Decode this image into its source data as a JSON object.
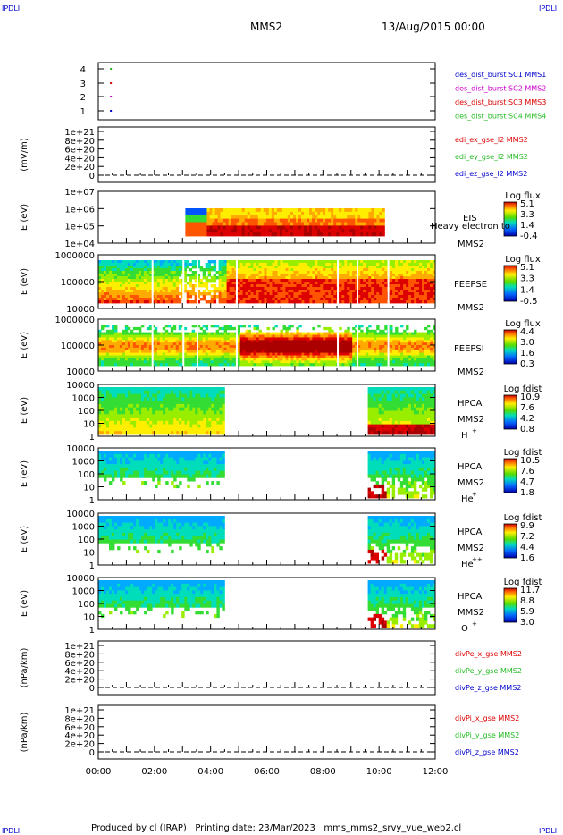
{
  "corner_label": "IPDLI",
  "header": {
    "spacecraft": "MMS2",
    "date": "13/Aug/2015 00:00"
  },
  "footer": "Produced by cl (IRAP)   Printing date: 23/Mar/2023   mms_mms2_srvy_vue_web2.cl",
  "colors": {
    "blue": "#0000cc",
    "magenta": "#cc00cc",
    "red": "#dd0000",
    "green": "#22bb22"
  },
  "chart_data": {
    "type": "heatmap",
    "x_axis": {
      "ticks": [
        "00:00",
        "02:00",
        "04:00",
        "06:00",
        "08:00",
        "10:00",
        "12:00"
      ],
      "range_hours": [
        0,
        12
      ]
    },
    "panels": [
      {
        "id": "burst",
        "type": "scatter",
        "yticks": [
          "4",
          "3",
          "2",
          "1"
        ],
        "legend": [
          {
            "text": "des_dist_burst SC1 MMS1",
            "color": "blue"
          },
          {
            "text": "des_dist_burst SC2 MMS2",
            "color": "magenta"
          },
          {
            "text": "des_dist_burst SC3 MMS3",
            "color": "red"
          },
          {
            "text": "des_dist_burst SC4 MMS4",
            "color": "green"
          }
        ],
        "points": [
          {
            "x": 0.45,
            "y": 4,
            "color": "green"
          },
          {
            "x": 0.45,
            "y": 3,
            "color": "red"
          },
          {
            "x": 0.45,
            "y": 2,
            "color": "magenta"
          },
          {
            "x": 0.45,
            "y": 1,
            "color": "blue"
          }
        ]
      },
      {
        "id": "edi",
        "type": "line",
        "ylabel": "(mV/m)",
        "yticks": [
          "1e+21",
          "8e+20",
          "6e+20",
          "4e+20",
          "2e+20",
          "0"
        ],
        "legend": [
          {
            "text": "edi_ex_gse_l2 MMS2",
            "color": "red"
          },
          {
            "text": "edi_ey_gse_l2 MMS2",
            "color": "green"
          },
          {
            "text": "edi_ez_gse_l2 MMS2",
            "color": "blue"
          }
        ]
      },
      {
        "id": "eis",
        "type": "heatmap",
        "ylabel": "E (eV)",
        "yticks": [
          "1e+07",
          "1e+06",
          "1e+05",
          "1e+04"
        ],
        "labels": [
          "EIS",
          "Heavy electron to",
          "MMS2"
        ],
        "cbar_title": "Log flux",
        "cbar_ticks": [
          "5.1",
          "3.3",
          "1.4",
          "-0.4"
        ],
        "data_x_range": [
          3.1,
          10.2
        ]
      },
      {
        "id": "feepse",
        "type": "heatmap",
        "ylabel": "E (eV)",
        "yticks": [
          "1000000",
          "100000",
          "10000"
        ],
        "labels": [
          "FEEPSE",
          "MMS2"
        ],
        "cbar_title": "Log flux",
        "cbar_ticks": [
          "5.1",
          "3.3",
          "1.4",
          "-0.5"
        ],
        "data_x_range": [
          0,
          12
        ]
      },
      {
        "id": "feepsi",
        "type": "heatmap",
        "ylabel": "E (eV)",
        "yticks": [
          "1000000",
          "100000",
          "10000"
        ],
        "labels": [
          "FEEPSI",
          "MMS2"
        ],
        "cbar_title": "Log flux",
        "cbar_ticks": [
          "4.4",
          "3.0",
          "1.6",
          "0.3"
        ],
        "data_x_range": [
          0,
          12
        ]
      },
      {
        "id": "hpca_h",
        "type": "heatmap",
        "ylabel": "E (eV)",
        "yticks": [
          "10000",
          "1000",
          "100",
          "10",
          "1"
        ],
        "labels": [
          "HPCA",
          "MMS2"
        ],
        "species": "H",
        "species_sup": "+",
        "cbar_title": "Log fdist",
        "cbar_ticks": [
          "10.9",
          "7.6",
          "4.2",
          "0.8"
        ],
        "data_x_ranges": [
          [
            0,
            4.5
          ],
          [
            9.6,
            12
          ]
        ]
      },
      {
        "id": "hpca_he",
        "type": "heatmap",
        "ylabel": "E (eV)",
        "yticks": [
          "10000",
          "1000",
          "100",
          "10",
          "1"
        ],
        "labels": [
          "HPCA",
          "MMS2"
        ],
        "species": "He",
        "species_sup": "+",
        "cbar_title": "Log fdist",
        "cbar_ticks": [
          "10.5",
          "7.6",
          "4.7",
          "1.8"
        ],
        "data_x_ranges": [
          [
            0,
            4.5
          ],
          [
            9.6,
            12
          ]
        ]
      },
      {
        "id": "hpca_he2",
        "type": "heatmap",
        "ylabel": "E (eV)",
        "yticks": [
          "10000",
          "1000",
          "100",
          "10",
          "1"
        ],
        "labels": [
          "HPCA",
          "MMS2"
        ],
        "species": "He",
        "species_sup": "++",
        "cbar_title": "Log fdist",
        "cbar_ticks": [
          "9.9",
          "7.2",
          "4.4",
          "1.6"
        ],
        "data_x_ranges": [
          [
            0,
            4.5
          ],
          [
            9.6,
            12
          ]
        ]
      },
      {
        "id": "hpca_o",
        "type": "heatmap",
        "ylabel": "E (eV)",
        "yticks": [
          "10000",
          "1000",
          "100",
          "10",
          "1"
        ],
        "labels": [
          "HPCA",
          "MMS2"
        ],
        "species": "O",
        "species_sup": "+",
        "cbar_title": "Log fdist",
        "cbar_ticks": [
          "11.7",
          "8.8",
          "5.9",
          "3.0"
        ],
        "data_x_ranges": [
          [
            0,
            4.5
          ],
          [
            9.6,
            12
          ]
        ]
      },
      {
        "id": "divpe",
        "type": "line",
        "ylabel": "(nPa/km)",
        "yticks": [
          "1e+21",
          "8e+20",
          "6e+20",
          "4e+20",
          "2e+20",
          "0"
        ],
        "legend": [
          {
            "text": "divPe_x_gse MMS2",
            "color": "red"
          },
          {
            "text": "divPe_y_gse MMS2",
            "color": "green"
          },
          {
            "text": "divPe_z_gse MMS2",
            "color": "blue"
          }
        ]
      },
      {
        "id": "divpi",
        "type": "line",
        "ylabel": "(nPa/km)",
        "yticks": [
          "1e+21",
          "8e+20",
          "6e+20",
          "4e+20",
          "2e+20",
          "0"
        ],
        "legend": [
          {
            "text": "divPi_x_gse MMS2",
            "color": "red"
          },
          {
            "text": "divPi_y_gse MMS2",
            "color": "green"
          },
          {
            "text": "divPi_z_gse MMS2",
            "color": "blue"
          }
        ]
      }
    ]
  }
}
